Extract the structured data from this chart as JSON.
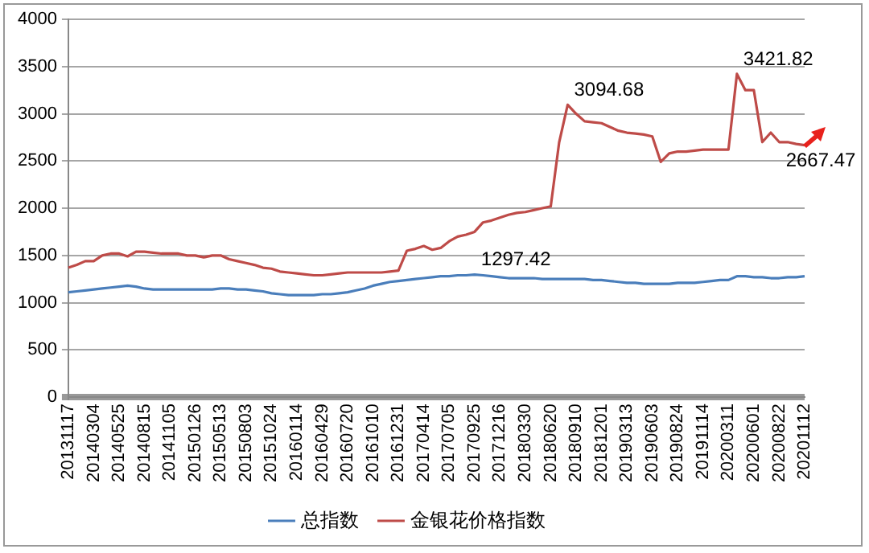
{
  "chart_data": {
    "type": "line",
    "categories": [
      "20131117",
      null,
      null,
      "20140304",
      null,
      null,
      "20140525",
      null,
      null,
      "20140815",
      null,
      null,
      "20141105",
      null,
      null,
      "20150126",
      null,
      null,
      "20150513",
      null,
      null,
      "20150803",
      null,
      null,
      "20151024",
      null,
      null,
      "20160114",
      null,
      null,
      "20160429",
      null,
      null,
      "20160720",
      null,
      null,
      "20161010",
      null,
      null,
      "20161231",
      null,
      null,
      "20170414",
      null,
      null,
      "20170705",
      null,
      null,
      "20170925",
      null,
      null,
      "20171216",
      null,
      null,
      "20180330",
      null,
      null,
      "20180620",
      null,
      null,
      "20180910",
      null,
      null,
      "20181201",
      null,
      null,
      "20190313",
      null,
      null,
      "20190603",
      null,
      null,
      "20190824",
      null,
      null,
      "20191114",
      null,
      null,
      "20200311",
      null,
      null,
      "20200601",
      null,
      null,
      "20200822",
      null,
      null,
      "20201112"
    ],
    "series": [
      {
        "name": "总指数",
        "color": "#4a7ebb",
        "values": [
          1110,
          1120,
          1130,
          1140,
          1150,
          1160,
          1170,
          1180,
          1170,
          1150,
          1140,
          1140,
          1140,
          1140,
          1140,
          1140,
          1140,
          1140,
          1150,
          1150,
          1140,
          1140,
          1130,
          1120,
          1100,
          1090,
          1080,
          1080,
          1080,
          1080,
          1090,
          1090,
          1100,
          1110,
          1130,
          1150,
          1180,
          1200,
          1220,
          1230,
          1240,
          1250,
          1260,
          1270,
          1280,
          1280,
          1290,
          1290,
          1297.42,
          1290,
          1280,
          1270,
          1260,
          1260,
          1260,
          1260,
          1250,
          1250,
          1250,
          1250,
          1250,
          1250,
          1240,
          1240,
          1230,
          1220,
          1210,
          1210,
          1200,
          1200,
          1200,
          1200,
          1210,
          1210,
          1210,
          1220,
          1230,
          1240,
          1240,
          1280,
          1280,
          1270,
          1270,
          1260,
          1260,
          1270,
          1270,
          1280
        ],
        "value_labels": [
          null,
          null,
          null,
          null,
          null,
          null,
          null,
          null,
          null,
          null,
          null,
          null,
          null,
          null,
          null,
          null,
          null,
          null,
          null,
          null,
          null,
          null,
          null,
          null,
          null,
          null,
          null,
          null,
          null,
          null,
          null,
          null,
          null,
          null,
          null,
          null,
          null,
          null,
          null,
          null,
          null,
          null,
          null,
          null,
          null,
          null,
          null,
          null,
          "1297.42",
          null,
          null,
          null,
          null,
          null,
          null,
          null,
          null,
          null,
          null,
          null,
          null,
          null,
          null,
          null,
          null,
          null,
          null,
          null,
          null,
          null,
          null,
          null,
          null,
          null,
          null,
          null,
          null,
          null,
          null,
          null,
          null,
          null,
          null,
          null,
          null,
          null,
          null,
          null
        ]
      },
      {
        "name": "金银花价格指数",
        "color": "#be4b48",
        "values": [
          1370,
          1400,
          1440,
          1440,
          1500,
          1520,
          1520,
          1490,
          1540,
          1540,
          1530,
          1520,
          1520,
          1520,
          1500,
          1500,
          1480,
          1500,
          1500,
          1460,
          1440,
          1420,
          1400,
          1370,
          1360,
          1330,
          1320,
          1310,
          1300,
          1290,
          1290,
          1300,
          1310,
          1320,
          1320,
          1320,
          1320,
          1320,
          1330,
          1340,
          1550,
          1570,
          1600,
          1560,
          1580,
          1650,
          1700,
          1720,
          1750,
          1850,
          1870,
          1900,
          1930,
          1950,
          1960,
          1980,
          2000,
          2020,
          2700,
          3094.68,
          3000,
          2920,
          2910,
          2900,
          2860,
          2820,
          2800,
          2790,
          2780,
          2760,
          2490,
          2580,
          2600,
          2600,
          2610,
          2620,
          2620,
          2620,
          2620,
          3421.82,
          3250,
          3250,
          2700,
          2800,
          2700,
          2700,
          2680,
          2667.47
        ],
        "value_labels": [
          null,
          null,
          null,
          null,
          null,
          null,
          null,
          null,
          null,
          null,
          null,
          null,
          null,
          null,
          null,
          null,
          null,
          null,
          null,
          null,
          null,
          null,
          null,
          null,
          null,
          null,
          null,
          null,
          null,
          null,
          null,
          null,
          null,
          null,
          null,
          null,
          null,
          null,
          null,
          null,
          null,
          null,
          null,
          null,
          null,
          null,
          null,
          null,
          null,
          null,
          null,
          null,
          null,
          null,
          null,
          null,
          null,
          null,
          null,
          "3094.68",
          null,
          null,
          null,
          null,
          null,
          null,
          null,
          null,
          null,
          null,
          null,
          null,
          null,
          null,
          null,
          null,
          null,
          null,
          null,
          "3421.82",
          null,
          null,
          null,
          null,
          null,
          null,
          null,
          "2667.47"
        ]
      }
    ],
    "ylim": [
      0,
      4000
    ],
    "yticks": [
      0,
      500,
      1000,
      1500,
      2000,
      2500,
      3000,
      3500,
      4000
    ],
    "grid": "y",
    "legend": "bottom",
    "marker": "none",
    "line_style": "solid"
  }
}
